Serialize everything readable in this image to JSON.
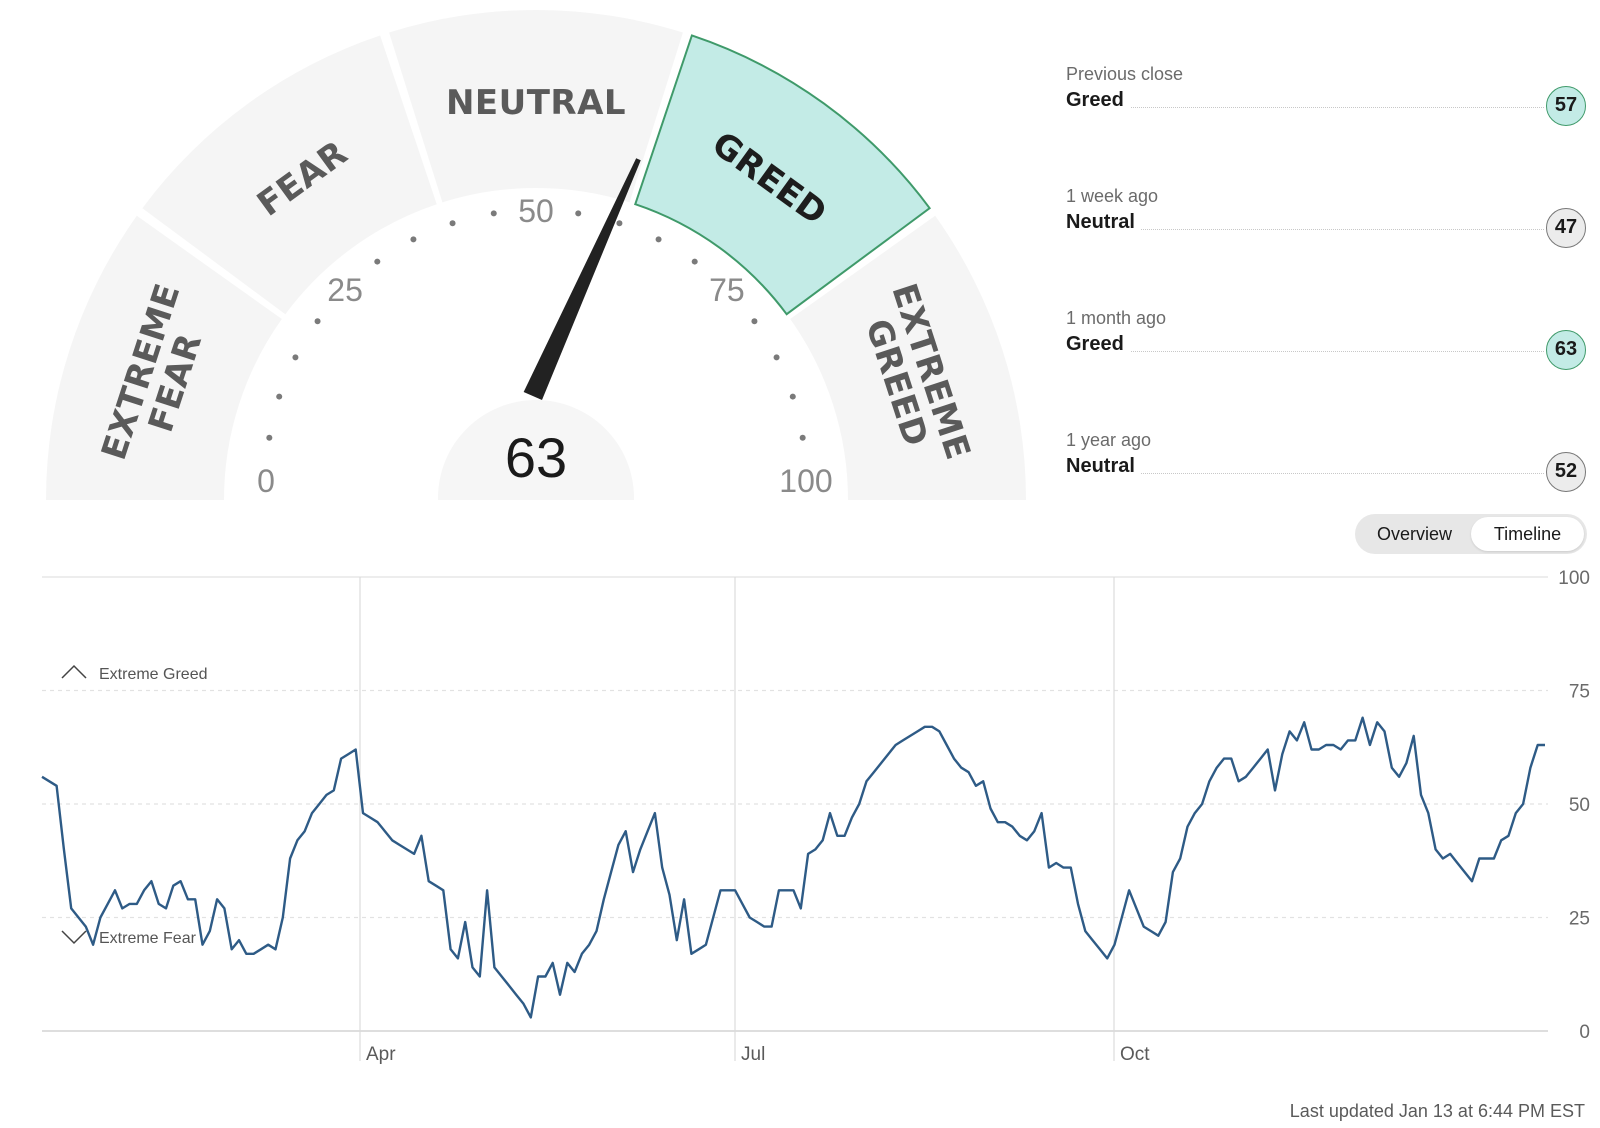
{
  "gauge": {
    "value": 63,
    "segments": [
      {
        "label_lines": [
          "EXTREME",
          "FEAR"
        ],
        "active": false
      },
      {
        "label_lines": [
          "FEAR"
        ],
        "active": false
      },
      {
        "label_lines": [
          "NEUTRAL"
        ],
        "active": false
      },
      {
        "label_lines": [
          "GREED"
        ],
        "active": true
      },
      {
        "label_lines": [
          "EXTREME",
          "GREED"
        ],
        "active": false
      }
    ],
    "tick_labels": [
      "0",
      "25",
      "50",
      "75",
      "100"
    ],
    "active_fill": "#c3ebe6",
    "active_stroke": "#3f9a6a",
    "inactive_fill": "#f5f5f5",
    "needle_color": "#222222"
  },
  "history": [
    {
      "label": "Previous close",
      "rating": "Greed",
      "value": "57",
      "tone": "greed"
    },
    {
      "label": "1 week ago",
      "rating": "Neutral",
      "value": "47",
      "tone": "neutral"
    },
    {
      "label": "1 month ago",
      "rating": "Greed",
      "value": "63",
      "tone": "greed"
    },
    {
      "label": "1 year ago",
      "rating": "Neutral",
      "value": "52",
      "tone": "neutral"
    }
  ],
  "toggle": {
    "options": [
      "Overview",
      "Timeline"
    ],
    "active": "Timeline"
  },
  "chart_data": {
    "type": "line",
    "x_axis_labels": [
      "Apr",
      "Jul",
      "Oct"
    ],
    "y_ticks": [
      0,
      25,
      50,
      75,
      100
    ],
    "ylim": [
      0,
      100
    ],
    "grid": true,
    "markers": [
      {
        "label": "Extreme Greed",
        "icon": "chevron-up-icon"
      },
      {
        "label": "Extreme Fear",
        "icon": "chevron-down-icon"
      }
    ],
    "line_color": "#2e5b86",
    "series": [
      {
        "x_index_range": [
          0,
          360
        ],
        "values": [
          56,
          55,
          54,
          40,
          27,
          25,
          23,
          19,
          25,
          28,
          31,
          27,
          28,
          28,
          31,
          33,
          28,
          27,
          32,
          33,
          29,
          29,
          19,
          22,
          29,
          27,
          18,
          20,
          17,
          17,
          18,
          19,
          18,
          25,
          38,
          42,
          44,
          48,
          50,
          52,
          53,
          60,
          61,
          62,
          48,
          47,
          46,
          44,
          42,
          41,
          40,
          39,
          43,
          33,
          32,
          31,
          18,
          16,
          24,
          14,
          12,
          31,
          14,
          12,
          10,
          8,
          6,
          3,
          12,
          12,
          15,
          8,
          15,
          13,
          17,
          19,
          22,
          29,
          35,
          41,
          44,
          35,
          40,
          44,
          48,
          36,
          30,
          20,
          29,
          17,
          18,
          19,
          25,
          31,
          31,
          31,
          28,
          25,
          24,
          23,
          23,
          31,
          31,
          31,
          27,
          39,
          40,
          42,
          48,
          43,
          43,
          47,
          50,
          55,
          57,
          59,
          61,
          63,
          64,
          65,
          66,
          67,
          67,
          66,
          63,
          60,
          58,
          57,
          54,
          55,
          49,
          46,
          46,
          45,
          43,
          42,
          44,
          48,
          36,
          37,
          36,
          36,
          28,
          22,
          20,
          18,
          16,
          19,
          25,
          31,
          27,
          23,
          22,
          21,
          24,
          35,
          38,
          45,
          48,
          50,
          55,
          58,
          60,
          60,
          55,
          56,
          58,
          60,
          62,
          53,
          61,
          66,
          64,
          68,
          62,
          62,
          63,
          63,
          62,
          64,
          64,
          69,
          63,
          68,
          66,
          58,
          56,
          59,
          65,
          52,
          48,
          40,
          38,
          39,
          37,
          35,
          33,
          38,
          38,
          38,
          42,
          43,
          48,
          50,
          58,
          63,
          63
        ]
      }
    ]
  },
  "footer": {
    "last_updated": "Last updated Jan 13 at 6:44 PM EST"
  }
}
